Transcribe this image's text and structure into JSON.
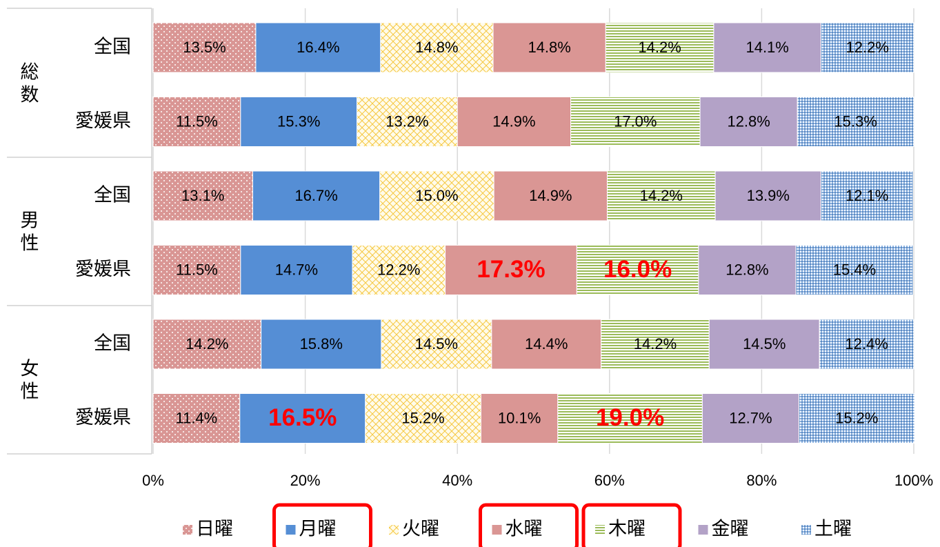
{
  "chart_data": {
    "type": "stacked-bar-horizontal",
    "groups": [
      "総数",
      "男性",
      "女性"
    ],
    "categories": [
      "全国",
      "愛媛県",
      "全国",
      "愛媛県",
      "全国",
      "愛媛県"
    ],
    "series": [
      {
        "name": "日曜",
        "color": "#d99694",
        "pattern": "dots",
        "values": [
          13.5,
          11.5,
          13.1,
          11.5,
          14.2,
          11.4
        ],
        "value_labels": [
          "13.5%",
          "11.5%",
          "13.1%",
          "11.5%",
          "14.2%",
          "11.4%"
        ]
      },
      {
        "name": "月曜",
        "color": "#558ed5",
        "pattern": "solid",
        "values": [
          16.4,
          15.3,
          16.7,
          14.7,
          15.8,
          16.5
        ],
        "value_labels": [
          "16.4%",
          "15.3%",
          "16.7%",
          "14.7%",
          "15.8%",
          "16.5%"
        ]
      },
      {
        "name": "火曜",
        "color": "#f5c842",
        "pattern": "crosshatch",
        "values": [
          14.8,
          13.2,
          15.0,
          12.2,
          14.5,
          15.2
        ],
        "value_labels": [
          "14.8%",
          "13.2%",
          "15.0%",
          "12.2%",
          "14.5%",
          "15.2%"
        ]
      },
      {
        "name": "水曜",
        "color": "#da9694",
        "pattern": "solid",
        "values": [
          14.8,
          14.9,
          14.9,
          17.3,
          14.4,
          10.1
        ],
        "value_labels": [
          "14.8%",
          "14.9%",
          "14.9%",
          "17.3%",
          "14.4%",
          "10.1%"
        ]
      },
      {
        "name": "木曜",
        "color": "#9bbb59",
        "pattern": "horizontal",
        "values": [
          14.2,
          17.0,
          14.2,
          16.0,
          14.2,
          19.0
        ],
        "value_labels": [
          "14.2%",
          "17.0%",
          "14.2%",
          "16.0%",
          "14.2%",
          "19.0%"
        ]
      },
      {
        "name": "金曜",
        "color": "#b3a2c7",
        "pattern": "solid",
        "values": [
          14.1,
          12.8,
          13.9,
          12.8,
          14.5,
          12.7
        ],
        "value_labels": [
          "14.1%",
          "12.8%",
          "13.9%",
          "12.8%",
          "14.5%",
          "12.7%"
        ]
      },
      {
        "name": "土曜",
        "color": "#8eb4e3",
        "pattern": "checker",
        "values": [
          12.2,
          15.3,
          12.1,
          15.4,
          12.4,
          15.2
        ],
        "value_labels": [
          "12.2%",
          "15.3%",
          "12.1%",
          "15.4%",
          "12.4%",
          "15.2%"
        ]
      }
    ],
    "xlim": [
      0,
      100
    ],
    "xticks": [
      {
        "value": 0,
        "label": "0%"
      },
      {
        "value": 20,
        "label": "20%"
      },
      {
        "value": 40,
        "label": "40%"
      },
      {
        "value": 60,
        "label": "60%"
      },
      {
        "value": 80,
        "label": "80%"
      },
      {
        "value": 100,
        "label": "100%"
      }
    ],
    "grid": true,
    "legend": "bottom",
    "highlight": {
      "color": "#ff0000",
      "cells": [
        [
          3,
          3
        ],
        [
          4,
          3
        ],
        [
          1,
          5
        ],
        [
          4,
          5
        ]
      ],
      "legend": [
        1,
        3,
        4
      ]
    }
  }
}
